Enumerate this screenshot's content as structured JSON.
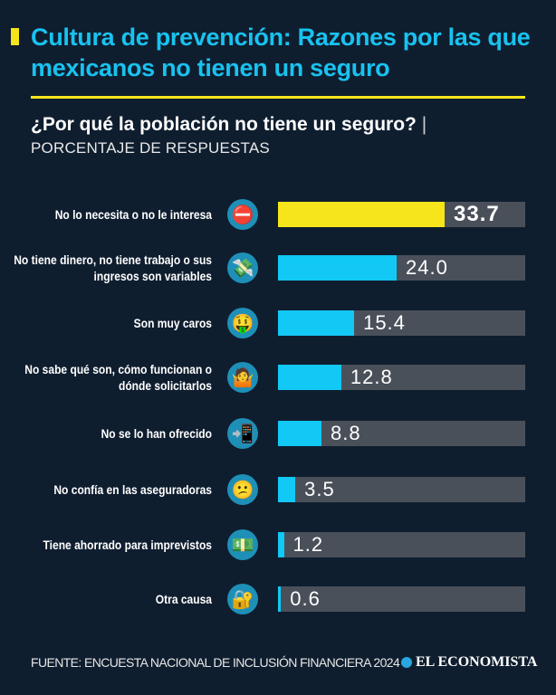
{
  "header": {
    "title": "Cultura de prevención: Razones por las que mexicanos no tienen un seguro",
    "subtitle": "¿Por qué la población no tiene un seguro?",
    "separator": "|",
    "subtitle2": "PORCENTAJE DE RESPUESTAS"
  },
  "colors": {
    "accent": "#f5e51a",
    "bar": "#12c8f5",
    "track": "#4a505a",
    "title": "#19c2ef",
    "background": "#0f1e2f"
  },
  "chart_data": {
    "type": "bar",
    "orientation": "horizontal",
    "title": "¿Por qué la población no tiene un seguro?",
    "ylabel": "PORCENTAJE DE RESPUESTAS",
    "xlim": [
      0,
      50
    ],
    "categories": [
      "No lo necesita o no le interesa",
      "No tiene dinero, no tiene trabajo o sus ingresos son variables",
      "Son muy caros",
      "No sabe qué son, cómo funcionan o dónde solicitarlos",
      "No se lo han ofrecido",
      "No confía en las aseguradoras",
      "Tiene ahorrado para imprevistos",
      "Otra causa"
    ],
    "values": [
      33.7,
      24.0,
      15.4,
      12.8,
      8.8,
      3.5,
      1.2,
      0.6
    ],
    "value_labels": [
      "33.7",
      "24.0",
      "15.4",
      "12.8",
      "8.8",
      "3.5",
      "1.2",
      "0.6"
    ],
    "icons": [
      "no-entry-icon",
      "money-wings-icon",
      "money-mouth-face-icon",
      "shrugging-person-icon",
      "mobile-phone-icon",
      "confused-face-icon",
      "dollar-bill-icon",
      "lock-key-icon"
    ],
    "icon_glyphs": [
      "⛔",
      "💸",
      "🤑",
      "🤷",
      "📲",
      "😕",
      "💵",
      "🔐"
    ]
  },
  "footer": {
    "source": "FUENTE: ENCUESTA NACIONAL DE INCLUSIÓN FINANCIERA 2024",
    "logo": "EL ECONOMISTA"
  }
}
